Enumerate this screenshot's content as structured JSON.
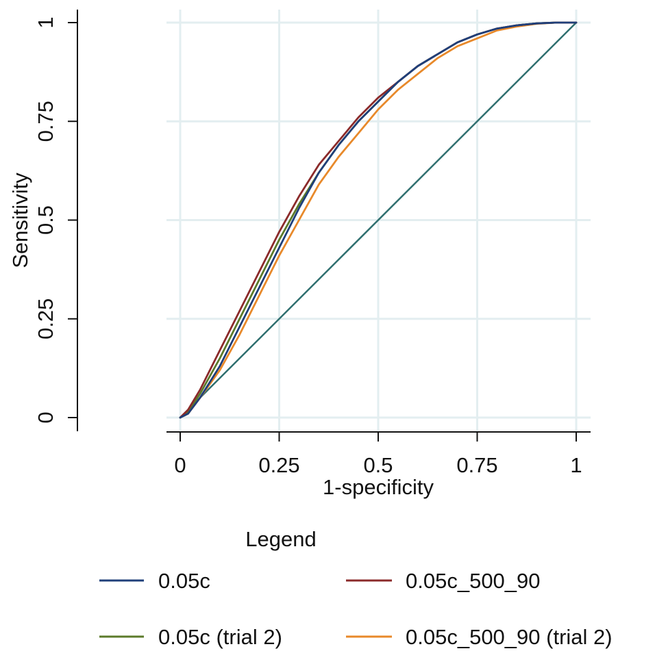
{
  "chart_data": {
    "type": "line",
    "title": "",
    "xlabel": "1-specificity",
    "ylabel": "Sensitivity",
    "xlim": [
      0,
      1
    ],
    "ylim": [
      0,
      1
    ],
    "x_ticks": [
      {
        "value": 0,
        "label": "0"
      },
      {
        "value": 0.25,
        "label": "0.25"
      },
      {
        "value": 0.5,
        "label": "0.5"
      },
      {
        "value": 0.75,
        "label": "0.75"
      },
      {
        "value": 1,
        "label": "1"
      }
    ],
    "y_ticks": [
      {
        "value": 0,
        "label": "0"
      },
      {
        "value": 0.25,
        "label": "0.25"
      },
      {
        "value": 0.5,
        "label": "0.5"
      },
      {
        "value": 0.75,
        "label": "0.75"
      },
      {
        "value": 1,
        "label": "1"
      }
    ],
    "grid": true,
    "legend": {
      "title": "Legend",
      "placement": "bottom",
      "columns": 2
    },
    "reference_line": {
      "x": [
        0,
        1
      ],
      "y": [
        0,
        1
      ],
      "color": "#2f6f6f"
    },
    "series": [
      {
        "name": "0.05c",
        "color": "#1f3f7a",
        "x": [
          0,
          0.02,
          0.05,
          0.1,
          0.15,
          0.2,
          0.25,
          0.3,
          0.35,
          0.4,
          0.45,
          0.5,
          0.55,
          0.6,
          0.65,
          0.7,
          0.75,
          0.8,
          0.85,
          0.9,
          0.95,
          1
        ],
        "y": [
          0,
          0.01,
          0.05,
          0.13,
          0.23,
          0.33,
          0.43,
          0.53,
          0.62,
          0.69,
          0.75,
          0.8,
          0.85,
          0.89,
          0.92,
          0.95,
          0.97,
          0.985,
          0.993,
          0.998,
          1,
          1
        ]
      },
      {
        "name": "0.05c_500_90",
        "color": "#8b2a2a",
        "x": [
          0,
          0.02,
          0.05,
          0.1,
          0.15,
          0.2,
          0.25,
          0.3,
          0.35,
          0.4,
          0.45,
          0.5,
          0.55,
          0.6,
          0.65,
          0.7,
          0.75,
          0.8,
          0.85,
          0.9,
          0.95,
          1
        ],
        "y": [
          0,
          0.02,
          0.07,
          0.17,
          0.27,
          0.37,
          0.47,
          0.56,
          0.64,
          0.7,
          0.76,
          0.81,
          0.85,
          0.89,
          0.92,
          0.95,
          0.97,
          0.985,
          0.993,
          0.998,
          1,
          1
        ]
      },
      {
        "name": "0.05c (trial 2)",
        "color": "#5b7a2a",
        "x": [
          0,
          0.02,
          0.05,
          0.1,
          0.15,
          0.2,
          0.25,
          0.3,
          0.35,
          0.4,
          0.45,
          0.5,
          0.55,
          0.6,
          0.65,
          0.7,
          0.75,
          0.8,
          0.85,
          0.9,
          0.95,
          1
        ],
        "y": [
          0,
          0.015,
          0.06,
          0.15,
          0.25,
          0.35,
          0.45,
          0.54,
          0.62,
          0.69,
          0.75,
          0.8,
          0.85,
          0.89,
          0.92,
          0.95,
          0.97,
          0.985,
          0.993,
          0.998,
          1,
          1
        ]
      },
      {
        "name": "0.05c_500_90 (trial 2)",
        "color": "#e8892a",
        "x": [
          0,
          0.02,
          0.05,
          0.1,
          0.15,
          0.2,
          0.25,
          0.3,
          0.35,
          0.4,
          0.45,
          0.5,
          0.55,
          0.6,
          0.65,
          0.7,
          0.75,
          0.8,
          0.85,
          0.9,
          0.95,
          1
        ],
        "y": [
          0,
          0.01,
          0.05,
          0.12,
          0.21,
          0.31,
          0.41,
          0.5,
          0.59,
          0.66,
          0.72,
          0.78,
          0.83,
          0.87,
          0.91,
          0.94,
          0.96,
          0.98,
          0.99,
          0.997,
          1,
          1
        ]
      }
    ]
  }
}
